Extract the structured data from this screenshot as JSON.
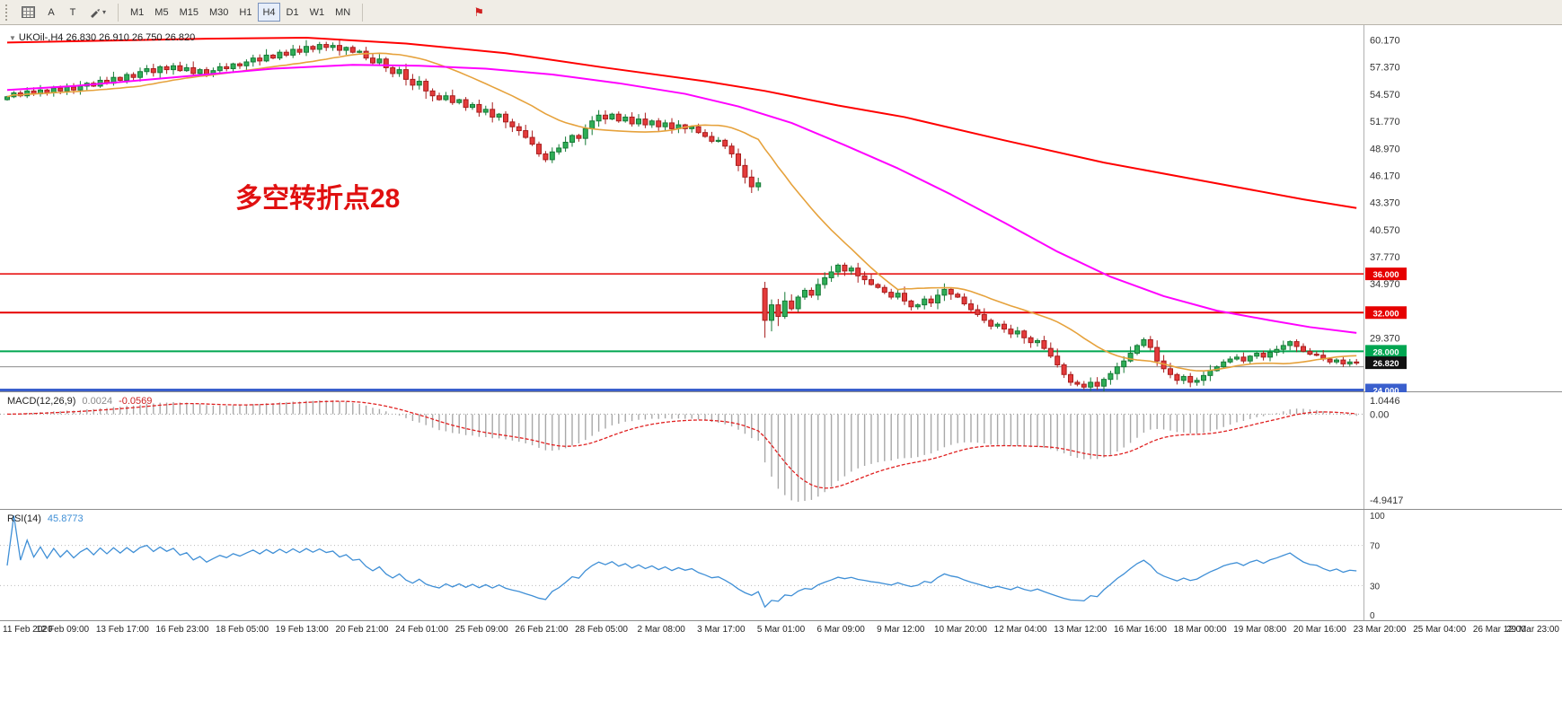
{
  "toolbar": {
    "timeframes": [
      "M1",
      "M5",
      "M15",
      "M30",
      "H1",
      "H4",
      "D1",
      "W1",
      "MN"
    ],
    "active_timeframe": "H4",
    "buttons": {
      "a_label": "A",
      "t_label": "T"
    },
    "draw_arrow_glyph": "▾",
    "flag_glyph": "⚑"
  },
  "chart": {
    "symbol_label": "UKOil-,H4 26.830 26.910 26.750 26.820",
    "marker_glyph": "▼",
    "annotation": {
      "text": "多空转折点28",
      "color": "#e01010"
    }
  },
  "chart_data": {
    "type": "candlestick",
    "symbol": "UKOil-",
    "timeframe": "H4",
    "ohlc_last": {
      "open": 26.83,
      "high": 26.91,
      "low": 26.75,
      "close": 26.82
    },
    "ylim": [
      23.77,
      61.7
    ],
    "first_open": 54.0,
    "gap": {
      "index": 114,
      "open": 34.5
    },
    "closes": [
      54.3,
      54.7,
      54.4,
      54.9,
      54.6,
      55.0,
      54.7,
      55.2,
      54.9,
      55.3,
      55.0,
      55.4,
      55.7,
      55.4,
      56.0,
      55.7,
      56.3,
      56.0,
      56.6,
      56.3,
      56.9,
      57.2,
      56.8,
      57.4,
      57.1,
      57.5,
      57.0,
      57.3,
      56.7,
      57.1,
      56.6,
      57.0,
      57.4,
      57.2,
      57.7,
      57.5,
      57.9,
      58.3,
      58.0,
      58.6,
      58.3,
      58.9,
      58.6,
      59.2,
      58.9,
      59.5,
      59.2,
      59.7,
      59.4,
      59.6,
      59.1,
      59.4,
      58.9,
      59.0,
      58.3,
      57.8,
      58.2,
      57.3,
      56.7,
      57.1,
      56.1,
      55.5,
      55.9,
      54.9,
      54.4,
      54.0,
      54.4,
      53.7,
      54.0,
      53.2,
      53.5,
      52.7,
      53.0,
      52.2,
      52.5,
      51.7,
      51.2,
      50.8,
      50.1,
      49.4,
      48.4,
      47.8,
      48.6,
      49.0,
      49.6,
      50.3,
      50.0,
      51.0,
      51.8,
      52.4,
      52.0,
      52.5,
      51.8,
      52.2,
      51.5,
      52.0,
      51.4,
      51.8,
      51.2,
      51.6,
      51.0,
      51.4,
      51.0,
      51.2,
      50.6,
      50.2,
      49.7,
      49.8,
      49.2,
      48.4,
      47.2,
      46.0,
      45.0,
      45.4,
      31.2,
      32.8,
      31.6,
      33.2,
      32.4,
      33.6,
      34.3,
      33.8,
      34.9,
      35.6,
      36.2,
      36.9,
      36.3,
      36.6,
      35.8,
      35.4,
      34.9,
      34.6,
      34.1,
      33.6,
      34.0,
      33.2,
      32.6,
      32.8,
      33.4,
      33.0,
      33.8,
      34.4,
      33.9,
      33.6,
      32.9,
      32.3,
      31.8,
      31.2,
      30.6,
      30.8,
      30.3,
      29.8,
      30.1,
      29.4,
      28.9,
      29.1,
      28.3,
      27.5,
      26.6,
      25.6,
      24.8,
      24.6,
      24.3,
      24.8,
      24.4,
      25.1,
      25.7,
      26.4,
      27.0,
      27.8,
      28.6,
      29.2,
      28.4,
      27.0,
      26.2,
      25.6,
      25.0,
      25.4,
      24.8,
      25.0,
      25.5,
      26.0,
      26.4,
      26.9,
      27.2,
      27.4,
      27.0,
      27.5,
      27.8,
      27.4,
      27.9,
      28.2,
      28.6,
      29.0,
      28.5,
      28.0,
      27.7,
      27.6,
      27.2,
      26.9,
      27.1,
      26.7,
      26.9,
      26.82
    ],
    "ma_slow_waypoints": [
      [
        0,
        59.9
      ],
      [
        15,
        60.1
      ],
      [
        30,
        60.3
      ],
      [
        45,
        60.4
      ],
      [
        60,
        59.8
      ],
      [
        75,
        58.8
      ],
      [
        90,
        57.3
      ],
      [
        105,
        55.9
      ],
      [
        114,
        54.9
      ],
      [
        125,
        53.4
      ],
      [
        135,
        52.2
      ],
      [
        150,
        49.8
      ],
      [
        165,
        47.5
      ],
      [
        180,
        45.6
      ],
      [
        195,
        43.7
      ],
      [
        203,
        42.8
      ]
    ],
    "ma_mid_waypoints": [
      [
        0,
        55.0
      ],
      [
        10,
        55.4
      ],
      [
        25,
        56.3
      ],
      [
        40,
        57.2
      ],
      [
        52,
        57.6
      ],
      [
        62,
        57.5
      ],
      [
        72,
        57.2
      ],
      [
        82,
        56.6
      ],
      [
        92,
        55.7
      ],
      [
        102,
        54.6
      ],
      [
        110,
        53.3
      ],
      [
        118,
        51.6
      ],
      [
        126,
        49.3
      ],
      [
        134,
        46.9
      ],
      [
        142,
        44.2
      ],
      [
        150,
        41.3
      ],
      [
        158,
        38.3
      ],
      [
        166,
        35.7
      ],
      [
        174,
        33.7
      ],
      [
        182,
        32.2
      ],
      [
        190,
        31.2
      ],
      [
        196,
        30.5
      ],
      [
        203,
        29.9
      ]
    ],
    "ma_fast_period": 21,
    "price_ticks": [
      "60.170",
      "57.370",
      "54.570",
      "51.770",
      "48.970",
      "46.170",
      "43.370",
      "40.570",
      "37.770",
      "34.970",
      "29.370"
    ],
    "hlines": [
      {
        "price": 36.0,
        "color": "#e60000",
        "width": 1.5
      },
      {
        "price": 32.0,
        "color": "#e60000",
        "width": 2
      },
      {
        "price": 28.0,
        "color": "#00a651",
        "width": 2
      },
      {
        "price": 26.4,
        "color": "#8c8c8c",
        "width": 1
      },
      {
        "price": 24.0,
        "color": "#3a5fcd",
        "width": 3
      }
    ],
    "price_tags": [
      {
        "text": "36.000",
        "price": 36.0,
        "bg": "#e60000"
      },
      {
        "text": "32.000",
        "price": 32.0,
        "bg": "#e60000"
      },
      {
        "text": "28.000",
        "price": 28.0,
        "bg": "#00a651"
      },
      {
        "text": "26.820",
        "price": 26.82,
        "bg": "#111111"
      },
      {
        "text": "24.000",
        "price": 24.0,
        "bg": "#3a5fcd"
      }
    ],
    "macd": {
      "label": "MACD(12,26,9)",
      "value1": "0.0024",
      "value2": "-0.0569",
      "fast": 12,
      "slow": 26,
      "signal": 9,
      "axis_labels": [
        "1.0446",
        "0.00",
        "-4.9417"
      ]
    },
    "rsi": {
      "label": "RSI(14)",
      "value": "45.8773",
      "period": 14,
      "levels": [
        70,
        30
      ],
      "axis_labels": [
        {
          "text": "100",
          "v": 100
        },
        {
          "text": "70",
          "v": 70
        },
        {
          "text": "30",
          "v": 30
        },
        {
          "text": "0",
          "v": 0
        }
      ]
    },
    "x_labels": [
      "11 Feb 2020",
      "12 Feb 09:00",
      "13 Feb 17:00",
      "16 Feb 23:00",
      "18 Feb 05:00",
      "19 Feb 13:00",
      "20 Feb 21:00",
      "24 Feb 01:00",
      "25 Feb 09:00",
      "26 Feb 21:00",
      "28 Feb 05:00",
      "2 Mar 08:00",
      "3 Mar 17:00",
      "5 Mar 01:00",
      "6 Mar 09:00",
      "9 Mar 12:00",
      "10 Mar 20:00",
      "12 Mar 04:00",
      "13 Mar 12:00",
      "16 Mar 16:00",
      "18 Mar 00:00",
      "19 Mar 08:00",
      "20 Mar 16:00",
      "23 Mar 20:00",
      "25 Mar 04:00",
      "26 Mar 12:00",
      "29 Mar 23:00"
    ],
    "colors": {
      "bull_fill": "#2fae57",
      "bull_stroke": "#157a36",
      "bear_fill": "#e43b3b",
      "bear_stroke": "#a81d1d",
      "ma_fast": "#e6a23c",
      "ma_mid": "#ff00ff",
      "ma_slow": "#ff0000",
      "macd_hist": "#a8a8a8",
      "macd_signal": "#e02020",
      "rsi_line": "#3f8fd6"
    }
  }
}
